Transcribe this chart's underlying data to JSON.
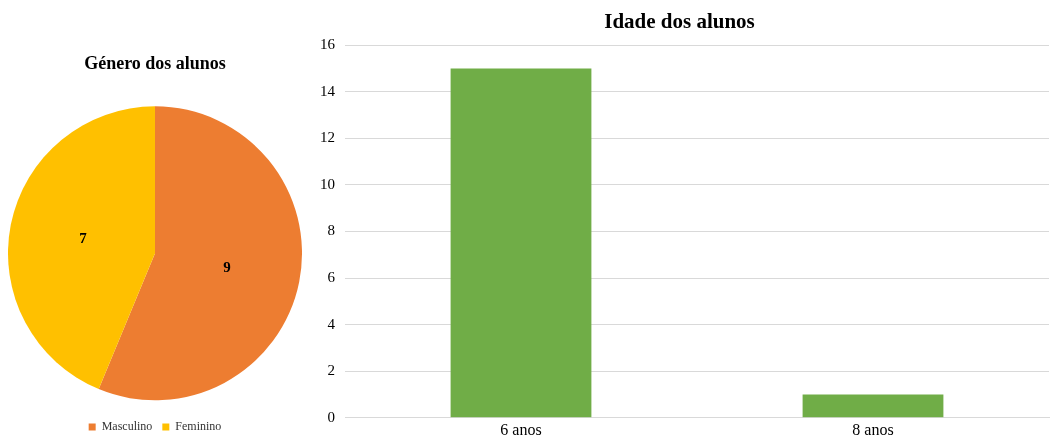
{
  "chart_data": [
    {
      "type": "pie",
      "title": "Género dos alunos",
      "categories": [
        "Masculino",
        "Feminino"
      ],
      "values": [
        9,
        7
      ],
      "colors": [
        "#ed7d31",
        "#ffc000"
      ],
      "data_labels": true,
      "legend": "bottom"
    },
    {
      "type": "bar",
      "title": "Idade dos alunos",
      "categories": [
        "6 anos",
        "8 anos"
      ],
      "values": [
        15,
        1
      ],
      "color": "#70ad47",
      "ylim": [
        0,
        16
      ],
      "yticks": [
        0,
        2,
        4,
        6,
        8,
        10,
        12,
        14,
        16
      ],
      "grid": "y",
      "legend": false
    }
  ]
}
